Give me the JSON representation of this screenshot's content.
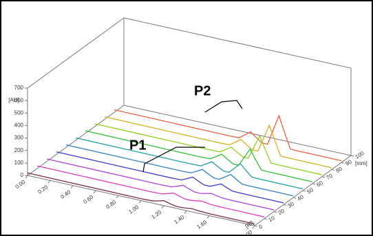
{
  "chart_data": {
    "type": "waterfall",
    "x_label": "[Rf]",
    "y_label": "[AU]",
    "z_label": "[mm]",
    "annotations": [
      "P1",
      "P2"
    ],
    "xlim": [
      0,
      2
    ],
    "xticks": [
      {
        "value": 0,
        "label": "0.00"
      },
      {
        "value": 0.2,
        "label": "0.20"
      },
      {
        "value": 0.4,
        "label": "0.40"
      },
      {
        "value": 0.6,
        "label": "0.60"
      },
      {
        "value": 0.8,
        "label": "0.80"
      },
      {
        "value": 1,
        "label": "1.00"
      },
      {
        "value": 1.2,
        "label": "1.20"
      },
      {
        "value": 1.4,
        "label": "1.40"
      },
      {
        "value": 1.6,
        "label": "1.60"
      },
      {
        "value": 2,
        "label": "2.00"
      }
    ],
    "ylim": [
      0,
      700
    ],
    "yticks": [
      0,
      100,
      200,
      300,
      400,
      500,
      600,
      700
    ],
    "zlim": [
      0,
      100
    ],
    "zticks": [
      0,
      10,
      20,
      30,
      40,
      50,
      60,
      70,
      80,
      90,
      100
    ],
    "x": [
      0,
      0.4,
      0.8,
      1.0,
      1.1,
      1.15,
      1.2,
      1.25,
      1.3,
      1.35,
      1.4,
      1.45,
      1.5,
      1.55,
      1.6,
      1.8,
      2.0
    ],
    "series": [
      {
        "color": "#7a2a50",
        "z": 0,
        "values": [
          20,
          18,
          16,
          15,
          17,
          27.5,
          40,
          27.5,
          17,
          16,
          20,
          25,
          20,
          18,
          16,
          15,
          14
        ]
      },
      {
        "color": "#e03cc0",
        "z": 10,
        "values": [
          20,
          18,
          16,
          15,
          17,
          30,
          45,
          30,
          17,
          16,
          22.5,
          30,
          22.5,
          18,
          16,
          15,
          14
        ]
      },
      {
        "color": "#b040e0",
        "z": 20,
        "values": [
          20,
          18,
          16,
          15,
          17,
          32.5,
          50,
          32.5,
          17,
          16,
          25,
          35,
          25,
          18,
          16,
          15,
          14
        ]
      },
      {
        "color": "#3c3cd0",
        "z": 30,
        "values": [
          20,
          18,
          16,
          15,
          17,
          37.5,
          60,
          37.5,
          17,
          16,
          35,
          55,
          35,
          18,
          16,
          15,
          14
        ]
      },
      {
        "color": "#3080c8",
        "z": 40,
        "values": [
          20,
          18,
          16,
          15,
          17,
          40,
          65,
          40,
          17,
          16,
          45,
          75,
          45,
          18,
          16,
          15,
          14
        ]
      },
      {
        "color": "#20a0a0",
        "z": 50,
        "values": [
          20,
          18,
          16,
          15,
          17,
          42.5,
          70,
          42.5,
          17,
          16,
          60,
          105,
          60,
          18,
          16,
          15,
          14
        ]
      },
      {
        "color": "#30c030",
        "z": 60,
        "values": [
          20,
          18,
          16,
          15,
          17,
          45,
          75,
          45,
          17,
          16,
          90,
          165,
          90,
          18,
          16,
          15,
          14
        ]
      },
      {
        "color": "#90d020",
        "z": 70,
        "values": [
          20,
          18,
          16,
          15,
          17,
          45,
          75,
          45,
          17,
          16,
          115,
          215,
          115,
          18,
          16,
          15,
          14
        ]
      },
      {
        "color": "#d8b020",
        "z": 80,
        "values": [
          20,
          18,
          16,
          15,
          17,
          47.5,
          80,
          47.5,
          17,
          16,
          130,
          245,
          130,
          18,
          16,
          15,
          14
        ]
      },
      {
        "color": "#f06040",
        "z": 90,
        "values": [
          20,
          18,
          16,
          15,
          17,
          50,
          85,
          50,
          17,
          16,
          140,
          265,
          140,
          18,
          16,
          15,
          14
        ]
      }
    ]
  }
}
